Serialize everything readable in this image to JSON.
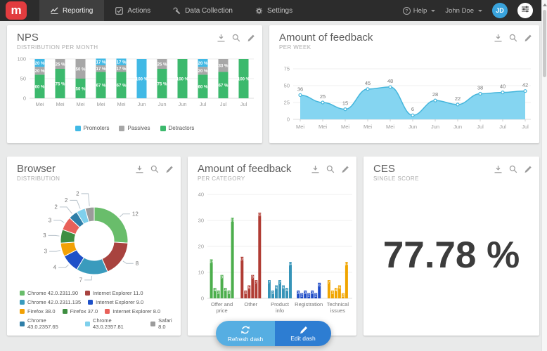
{
  "nav": {
    "logo_letter": "m",
    "tabs": [
      {
        "label": "Reporting",
        "icon": "chart-line-icon",
        "active": true
      },
      {
        "label": "Actions",
        "icon": "check-square-icon",
        "active": false
      },
      {
        "label": "Data Collection",
        "icon": "wrench-icon",
        "active": false
      },
      {
        "label": "Settings",
        "icon": "gear-icon",
        "active": false
      }
    ],
    "help_label": "Help",
    "user_name": "John Doe",
    "avatar_initials": "JD"
  },
  "panels": {
    "nps": {
      "title": "NPS",
      "subtitle": "DISTRIBUTION PER MONTH"
    },
    "feedback_week": {
      "title": "Amount of feedback",
      "subtitle": "PER WEEK"
    },
    "browser": {
      "title": "Browser",
      "subtitle": "DISTRIBUTION"
    },
    "feedback_category": {
      "title": "Amount of feedback",
      "subtitle": "PER CATEGORY"
    },
    "ces": {
      "title": "CES",
      "subtitle": "SINGLE SCORE",
      "value": "77.78 %"
    }
  },
  "footer_buttons": {
    "refresh_label": "Refresh dash",
    "edit_label": "Edit dash"
  },
  "chart_data": [
    {
      "id": "nps-distribution-per-month",
      "type": "bar",
      "stacked": true,
      "categories": [
        "Mei",
        "Mei",
        "Mei",
        "Mei",
        "Mei",
        "Jun",
        "Jun",
        "Jun",
        "Jul",
        "Jul",
        "Jul"
      ],
      "series": [
        {
          "name": "Promoters",
          "color": "#41b9e5",
          "values": [
            20,
            0,
            0,
            17,
            17,
            100,
            0,
            0,
            20,
            0,
            0
          ]
        },
        {
          "name": "Passives",
          "color": "#a7a7a7",
          "values": [
            20,
            25,
            50,
            17,
            17,
            0,
            25,
            0,
            20,
            33,
            0
          ]
        },
        {
          "name": "Detractors",
          "color": "#3cb96d",
          "values": [
            60,
            75,
            50,
            67,
            67,
            0,
            75,
            100,
            60,
            67,
            100
          ]
        }
      ],
      "value_suffix": " %",
      "ylim": [
        0,
        100
      ],
      "yticks": [
        0,
        50,
        100
      ],
      "legend_position": "bottom"
    },
    {
      "id": "amount-of-feedback-per-week",
      "type": "area",
      "x": [
        "Mei",
        "Mei",
        "Mei",
        "Mei",
        "Mei",
        "Jun",
        "Jun",
        "Jun",
        "Jul",
        "Jul",
        "Jul"
      ],
      "values": [
        36,
        25,
        15,
        45,
        48,
        6,
        28,
        22,
        38,
        40,
        42
      ],
      "ylim": [
        0,
        75
      ],
      "yticks": [
        0,
        25,
        50,
        75
      ],
      "fill_color": "#85d5f1",
      "line_color": "#45b6dc"
    },
    {
      "id": "browser-distribution",
      "type": "pie",
      "donut": true,
      "slices": [
        {
          "label": "Chrome 42.0.2311.90",
          "value": 12,
          "color": "#69bd6b"
        },
        {
          "label": "Internet Explorer 11.0",
          "value": 8,
          "color": "#a8433f"
        },
        {
          "label": "Chrome 42.0.2311.135",
          "value": 7,
          "color": "#3a9bbd"
        },
        {
          "label": "Internet Explorer 9.0",
          "value": 4,
          "color": "#1d50c8"
        },
        {
          "label": "Firefox 38.0",
          "value": 3,
          "color": "#f2a104"
        },
        {
          "label": "Firefox 37.0",
          "value": 3,
          "color": "#3e8e41"
        },
        {
          "label": "Internet Explorer 8.0",
          "value": 3,
          "color": "#e8615a"
        },
        {
          "label": "Chrome 43.0.2357.65",
          "value": 2,
          "color": "#2e7ea8"
        },
        {
          "label": "Chrome 43.0.2357.81",
          "value": 2,
          "color": "#7fd0ec"
        },
        {
          "label": "Safari 8.0",
          "value": 2,
          "color": "#9b9b9b"
        }
      ]
    },
    {
      "id": "amount-of-feedback-per-category",
      "type": "bar",
      "grouped": true,
      "ylim": [
        0,
        40
      ],
      "yticks": [
        0,
        10,
        20,
        30,
        40
      ],
      "categories": [
        {
          "label": "Offer and price",
          "label_lines": [
            "Offer and",
            "price"
          ],
          "color": "#4cae4c",
          "values": [
            15,
            4,
            3,
            9,
            4,
            3,
            31
          ]
        },
        {
          "label": "Other",
          "label_lines": [
            "Other"
          ],
          "color": "#b03c34",
          "values": [
            16,
            3,
            5,
            9,
            7,
            33
          ]
        },
        {
          "label": "Product info",
          "label_lines": [
            "Product",
            "info"
          ],
          "color": "#3694b8",
          "values": [
            7,
            3,
            5,
            7,
            5,
            4,
            14
          ]
        },
        {
          "label": "Registration",
          "label_lines": [
            "Registration"
          ],
          "color": "#1b49c6",
          "values": [
            3,
            2,
            3,
            2,
            3,
            2,
            6
          ]
        },
        {
          "label": "Technical issues",
          "label_lines": [
            "Technical",
            "issues"
          ],
          "color": "#f0a500",
          "values": [
            7,
            3,
            4,
            5,
            2,
            14
          ]
        }
      ]
    }
  ]
}
